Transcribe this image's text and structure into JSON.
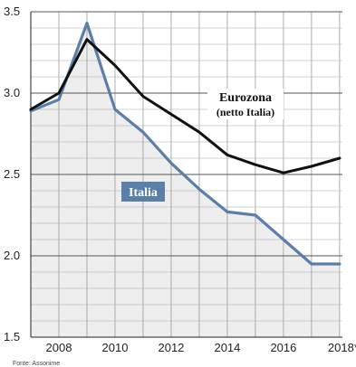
{
  "chart_data": {
    "type": "line",
    "title": "",
    "xlabel": "",
    "ylabel": "",
    "x": [
      2007,
      2008,
      2009,
      2010,
      2011,
      2012,
      2013,
      2014,
      2015,
      2016,
      2017,
      2018
    ],
    "x_tick_labels": [
      "2008",
      "2010",
      "2012",
      "2014",
      "2016",
      "2018*"
    ],
    "x_tick_values": [
      2008,
      2010,
      2012,
      2014,
      2016,
      2018
    ],
    "y_tick_labels": [
      "1.5",
      "2.0",
      "2.5",
      "3.0",
      "3.5"
    ],
    "y_tick_values": [
      1.5,
      2.0,
      2.5,
      3.0,
      3.5
    ],
    "xlim": [
      2007,
      2018.1
    ],
    "ylim": [
      1.5,
      3.5
    ],
    "grid": true,
    "series": [
      {
        "name": "Eurozona",
        "name_line2": "(netto Italia)",
        "color": "#111111",
        "values": [
          2.9,
          3.0,
          3.33,
          3.17,
          2.98,
          2.87,
          2.76,
          2.62,
          2.56,
          2.51,
          2.55,
          2.6
        ]
      },
      {
        "name": "Italia",
        "color": "#5b7fa8",
        "values": [
          2.89,
          2.96,
          3.43,
          2.9,
          2.76,
          2.57,
          2.41,
          2.27,
          2.25,
          2.1,
          1.95,
          1.95
        ]
      }
    ],
    "source": "Fonte: Assonime"
  }
}
